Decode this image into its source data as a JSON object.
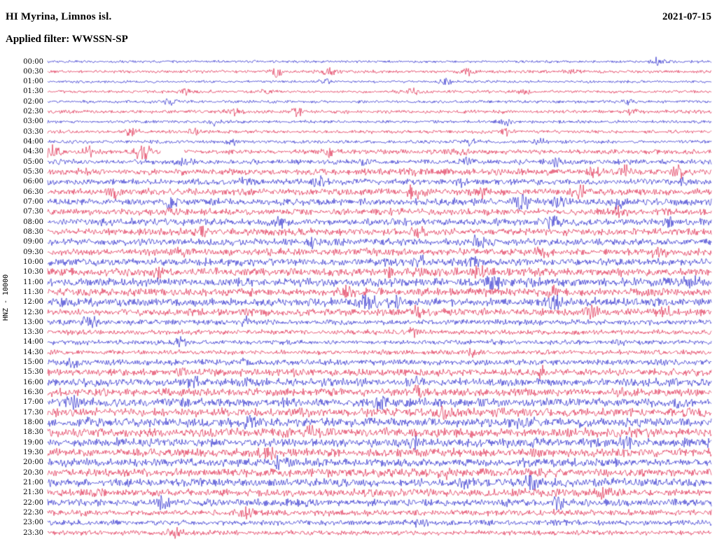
{
  "header": {
    "station_title": "HI Myrina, Limnos isl.",
    "date": "2021-07-15",
    "filter_label": "Applied filter: WWSSN-SP"
  },
  "axis": {
    "channel_label": "HNZ - 10000"
  },
  "colors": {
    "background": "#ffffff",
    "text": "#000000",
    "trace_blue": "#1414c8",
    "trace_red": "#dc143c"
  },
  "chart_data": {
    "type": "line",
    "subtype": "helicorder-seismogram",
    "station": "HI Myrina, Limnos isl.",
    "channel": "HNZ",
    "gain": "10000",
    "date": "2021-07-15",
    "filter": "WWSSN-SP",
    "minutes_per_row": 30,
    "row_color_cycle": [
      "blue",
      "red"
    ],
    "legend_position": "none",
    "grid": false,
    "rows": [
      {
        "time": "00:00",
        "color": "blue",
        "noise": 0.6,
        "bursts": [
          [
            0.92,
            1.4
          ]
        ]
      },
      {
        "time": "00:30",
        "color": "red",
        "noise": 0.7,
        "bursts": [
          [
            0.345,
            1.7
          ],
          [
            0.425,
            1.4
          ],
          [
            0.635,
            1.5
          ],
          [
            0.79,
            1.1
          ]
        ]
      },
      {
        "time": "01:00",
        "color": "blue",
        "noise": 0.6,
        "bursts": [
          [
            0.42,
            1.1
          ],
          [
            0.6,
            0.9
          ]
        ]
      },
      {
        "time": "01:30",
        "color": "red",
        "noise": 0.7,
        "bursts": [
          [
            0.21,
            1.4
          ],
          [
            0.33,
            1.1
          ],
          [
            0.55,
            1.3
          ],
          [
            0.72,
            1.2
          ]
        ]
      },
      {
        "time": "02:00",
        "color": "blue",
        "noise": 0.7,
        "bursts": [
          [
            0.185,
            1.2
          ],
          [
            0.875,
            1.1
          ]
        ]
      },
      {
        "time": "02:30",
        "color": "red",
        "noise": 0.8,
        "bursts": [
          [
            0.28,
            1.7
          ],
          [
            0.375,
            1.3
          ],
          [
            0.88,
            1.5
          ]
        ]
      },
      {
        "time": "03:00",
        "color": "blue",
        "noise": 0.7,
        "bursts": [
          [
            0.25,
            1.4
          ],
          [
            0.69,
            1.1
          ]
        ]
      },
      {
        "time": "03:30",
        "color": "red",
        "noise": 0.8,
        "bursts": [
          [
            0.125,
            1.5
          ],
          [
            0.225,
            1.2
          ],
          [
            0.69,
            1.4
          ]
        ]
      },
      {
        "time": "04:00",
        "color": "blue",
        "noise": 0.8,
        "bursts": [
          [
            0.28,
            1.5
          ],
          [
            0.64,
            1.4
          ],
          [
            0.74,
            1.2
          ]
        ]
      },
      {
        "time": "04:30",
        "color": "red",
        "noise": 1.1,
        "bursts": [
          [
            0.005,
            3.2
          ],
          [
            0.06,
            1.8
          ],
          [
            0.145,
            4.2
          ],
          [
            0.42,
            1.3
          ],
          [
            0.62,
            1.0
          ]
        ],
        "gap": [
          0.17,
          0.205
        ]
      },
      {
        "time": "05:00",
        "color": "blue",
        "noise": 1.2,
        "bursts": [
          [
            0.21,
            1.4
          ],
          [
            0.48,
            1.4
          ],
          [
            0.63,
            1.7
          ],
          [
            0.77,
            1.4
          ]
        ]
      },
      {
        "time": "05:30",
        "color": "red",
        "noise": 1.5,
        "bursts": [
          [
            0.55,
            1.6
          ],
          [
            0.82,
            2.1
          ],
          [
            0.87,
            1.9
          ],
          [
            0.95,
            1.7
          ]
        ]
      },
      {
        "time": "06:00",
        "color": "blue",
        "noise": 1.4,
        "bursts": [
          [
            0.3,
            1.9
          ],
          [
            0.41,
            1.7
          ],
          [
            0.62,
            1.4
          ],
          [
            0.95,
            1.6
          ]
        ]
      },
      {
        "time": "06:30",
        "color": "red",
        "noise": 1.6,
        "bursts": [
          [
            0.1,
            1.9
          ],
          [
            0.555,
            4.3
          ],
          [
            0.65,
            1.9
          ],
          [
            0.8,
            1.7
          ]
        ]
      },
      {
        "time": "07:00",
        "color": "blue",
        "noise": 1.6,
        "bursts": [
          [
            0.185,
            1.7
          ],
          [
            0.715,
            3.1
          ],
          [
            0.77,
            1.9
          ],
          [
            0.86,
            1.7
          ]
        ]
      },
      {
        "time": "07:30",
        "color": "red",
        "noise": 1.5,
        "bursts": [
          [
            0.19,
            1.7
          ],
          [
            0.52,
            1.5
          ],
          [
            0.86,
            1.6
          ]
        ]
      },
      {
        "time": "08:00",
        "color": "blue",
        "noise": 1.6,
        "bursts": [
          [
            0.35,
            1.7
          ],
          [
            0.76,
            1.6
          ],
          [
            0.94,
            1.9
          ]
        ]
      },
      {
        "time": "08:30",
        "color": "red",
        "noise": 1.6,
        "bursts": [
          [
            0.23,
            1.9
          ],
          [
            0.56,
            1.7
          ]
        ]
      },
      {
        "time": "09:00",
        "color": "blue",
        "noise": 1.6,
        "bursts": [
          [
            0.4,
            1.6
          ],
          [
            0.65,
            1.7
          ]
        ]
      },
      {
        "time": "09:30",
        "color": "red",
        "noise": 1.6,
        "bursts": [
          [
            0.2,
            1.7
          ],
          [
            0.745,
            1.8
          ],
          [
            0.92,
            2.1
          ]
        ]
      },
      {
        "time": "10:00",
        "color": "blue",
        "noise": 1.7,
        "bursts": [
          [
            0.56,
            1.9
          ],
          [
            0.64,
            1.7
          ]
        ]
      },
      {
        "time": "10:30",
        "color": "red",
        "noise": 1.8,
        "bursts": [
          [
            0.17,
            2.1
          ],
          [
            0.52,
            1.8
          ],
          [
            0.65,
            1.9
          ]
        ]
      },
      {
        "time": "11:00",
        "color": "blue",
        "noise": 1.9,
        "bursts": [
          [
            0.675,
            3.3
          ],
          [
            0.73,
            2.1
          ],
          [
            0.97,
            2.0
          ]
        ]
      },
      {
        "time": "11:30",
        "color": "red",
        "noise": 1.8,
        "bursts": [
          [
            0.45,
            1.8
          ],
          [
            0.76,
            1.9
          ]
        ]
      },
      {
        "time": "12:00",
        "color": "blue",
        "noise": 1.9,
        "bursts": [
          [
            0.483,
            5.2
          ],
          [
            0.525,
            2.4
          ],
          [
            0.76,
            2.8
          ]
        ]
      },
      {
        "time": "12:30",
        "color": "red",
        "noise": 1.7,
        "bursts": [
          [
            0.56,
            1.8
          ],
          [
            0.82,
            2.1
          ],
          [
            0.93,
            1.9
          ]
        ]
      },
      {
        "time": "13:00",
        "color": "blue",
        "noise": 1.3,
        "bursts": [
          [
            0.062,
            2.4
          ],
          [
            0.3,
            1.4
          ]
        ]
      },
      {
        "time": "13:30",
        "color": "red",
        "noise": 1.2,
        "bursts": [
          [
            0.55,
            1.4
          ]
        ]
      },
      {
        "time": "14:00",
        "color": "blue",
        "noise": 1.1,
        "bursts": [
          [
            0.2,
            1.3
          ],
          [
            0.86,
            1.2
          ]
        ]
      },
      {
        "time": "14:30",
        "color": "red",
        "noise": 1.1,
        "bursts": [
          [
            0.64,
            1.4
          ]
        ]
      },
      {
        "time": "15:00",
        "color": "blue",
        "noise": 1.3,
        "bursts": [
          [
            0.04,
            1.7
          ],
          [
            0.3,
            1.4
          ]
        ]
      },
      {
        "time": "15:30",
        "color": "red",
        "noise": 1.7,
        "bursts": [
          [
            0.2,
            1.9
          ],
          [
            0.75,
            1.7
          ]
        ]
      },
      {
        "time": "16:00",
        "color": "blue",
        "noise": 1.9,
        "bursts": [
          [
            0.22,
            2.0
          ],
          [
            0.56,
            1.8
          ]
        ]
      },
      {
        "time": "16:30",
        "color": "red",
        "noise": 1.9,
        "bursts": [
          [
            0.56,
            2.1
          ]
        ]
      },
      {
        "time": "17:00",
        "color": "blue",
        "noise": 2.0,
        "bursts": [
          [
            0.04,
            2.1
          ],
          [
            0.5,
            1.9
          ],
          [
            0.95,
            2.1
          ]
        ]
      },
      {
        "time": "17:30",
        "color": "red",
        "noise": 2.0,
        "bursts": [
          [
            0.6,
            2.1
          ]
        ]
      },
      {
        "time": "18:00",
        "color": "blue",
        "noise": 2.1,
        "bursts": [
          [
            0.3,
            2.0
          ],
          [
            0.72,
            2.3
          ]
        ]
      },
      {
        "time": "18:30",
        "color": "red",
        "noise": 2.1,
        "bursts": [
          [
            0.4,
            2.1
          ]
        ]
      },
      {
        "time": "19:00",
        "color": "blue",
        "noise": 2.1,
        "bursts": [
          [
            0.55,
            2.0
          ],
          [
            0.87,
            2.3
          ]
        ]
      },
      {
        "time": "19:30",
        "color": "red",
        "noise": 2.0,
        "bursts": [
          [
            0.33,
            2.1
          ]
        ]
      },
      {
        "time": "20:00",
        "color": "blue",
        "noise": 2.0,
        "bursts": [
          [
            0.35,
            2.3
          ]
        ]
      },
      {
        "time": "20:30",
        "color": "red",
        "noise": 1.9,
        "bursts": [
          [
            0.6,
            2.1
          ]
        ]
      },
      {
        "time": "21:00",
        "color": "blue",
        "noise": 1.9,
        "bursts": [
          [
            0.63,
            2.3
          ],
          [
            0.73,
            2.1
          ]
        ]
      },
      {
        "time": "21:30",
        "color": "red",
        "noise": 1.8,
        "bursts": [
          [
            0.84,
            1.9
          ]
        ]
      },
      {
        "time": "22:00",
        "color": "blue",
        "noise": 1.7,
        "bursts": [
          [
            0.17,
            2.1
          ],
          [
            0.77,
            2.4
          ]
        ]
      },
      {
        "time": "22:30",
        "color": "red",
        "noise": 1.4,
        "bursts": [
          [
            0.3,
            1.7
          ]
        ]
      },
      {
        "time": "23:00",
        "color": "blue",
        "noise": 1.2,
        "bursts": [
          [
            0.56,
            1.5
          ]
        ]
      },
      {
        "time": "23:30",
        "color": "red",
        "noise": 1.1,
        "bursts": [
          [
            0.19,
            2.8
          ]
        ]
      }
    ]
  }
}
